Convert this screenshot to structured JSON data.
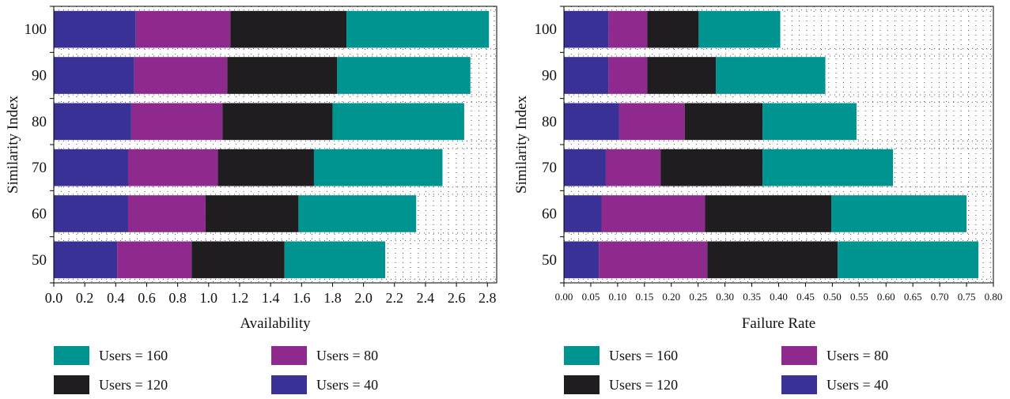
{
  "colors": {
    "users_160": "#009490",
    "users_120": "#1f1d1f",
    "users_80": "#8e2a8e",
    "users_40": "#3a3196",
    "grid": "#555555",
    "axis": "#000000"
  },
  "legend": {
    "items": [
      {
        "label": "Users = 160",
        "color": "#009490"
      },
      {
        "label": "Users = 80",
        "color": "#8e2a8e"
      },
      {
        "label": "Users = 120",
        "color": "#1f1d1f"
      },
      {
        "label": "Users = 40",
        "color": "#3a3196"
      }
    ]
  },
  "chart_data": [
    {
      "type": "bar",
      "orientation": "horizontal",
      "stacked": true,
      "title": "",
      "xlabel": "Availability",
      "ylabel": "Similarity Index",
      "categories": [
        "100",
        "90",
        "80",
        "70",
        "60",
        "50"
      ],
      "xlim": [
        0,
        2.86
      ],
      "xticks": [
        "0.0",
        "0.2",
        "0.4",
        "0.6",
        "0.8",
        "1.0",
        "1.2",
        "1.4",
        "1.6",
        "1.8",
        "2.0",
        "2.2",
        "2.4",
        "2.6",
        "2.8"
      ],
      "grid": "dotted",
      "series": [
        {
          "name": "Users = 40",
          "color": "#3a3196",
          "values": [
            0.53,
            0.52,
            0.5,
            0.48,
            0.48,
            0.41
          ]
        },
        {
          "name": "Users = 80",
          "color": "#8e2a8e",
          "values": [
            0.61,
            0.6,
            0.59,
            0.58,
            0.5,
            0.48
          ]
        },
        {
          "name": "Users = 120",
          "color": "#1f1d1f",
          "values": [
            0.75,
            0.71,
            0.71,
            0.62,
            0.6,
            0.6
          ]
        },
        {
          "name": "Users = 160",
          "color": "#009490",
          "values": [
            0.92,
            0.86,
            0.85,
            0.83,
            0.76,
            0.65
          ]
        }
      ]
    },
    {
      "type": "bar",
      "orientation": "horizontal",
      "stacked": true,
      "title": "",
      "xlabel": "Failure Rate",
      "ylabel": "Similarity Index",
      "categories": [
        "100",
        "90",
        "80",
        "70",
        "60",
        "50"
      ],
      "xlim": [
        0,
        0.8
      ],
      "xticks": [
        "0.00",
        "0.05",
        "0.10",
        "0.15",
        "0.20",
        "0.25",
        "0.30",
        "0.35",
        "0.40",
        "0.45",
        "0.50",
        "0.55",
        "0.60",
        "0.65",
        "0.70",
        "0.75",
        "0.80"
      ],
      "grid": "dotted",
      "series": [
        {
          "name": "Users = 40",
          "color": "#3a3196",
          "values": [
            0.083,
            0.083,
            0.103,
            0.078,
            0.07,
            0.065
          ]
        },
        {
          "name": "Users = 80",
          "color": "#8e2a8e",
          "values": [
            0.072,
            0.072,
            0.122,
            0.102,
            0.193,
            0.202
          ]
        },
        {
          "name": "Users = 120",
          "color": "#1f1d1f",
          "values": [
            0.096,
            0.128,
            0.145,
            0.19,
            0.235,
            0.243
          ]
        },
        {
          "name": "Users = 160",
          "color": "#009490",
          "values": [
            0.152,
            0.204,
            0.175,
            0.243,
            0.252,
            0.262
          ]
        }
      ]
    }
  ]
}
